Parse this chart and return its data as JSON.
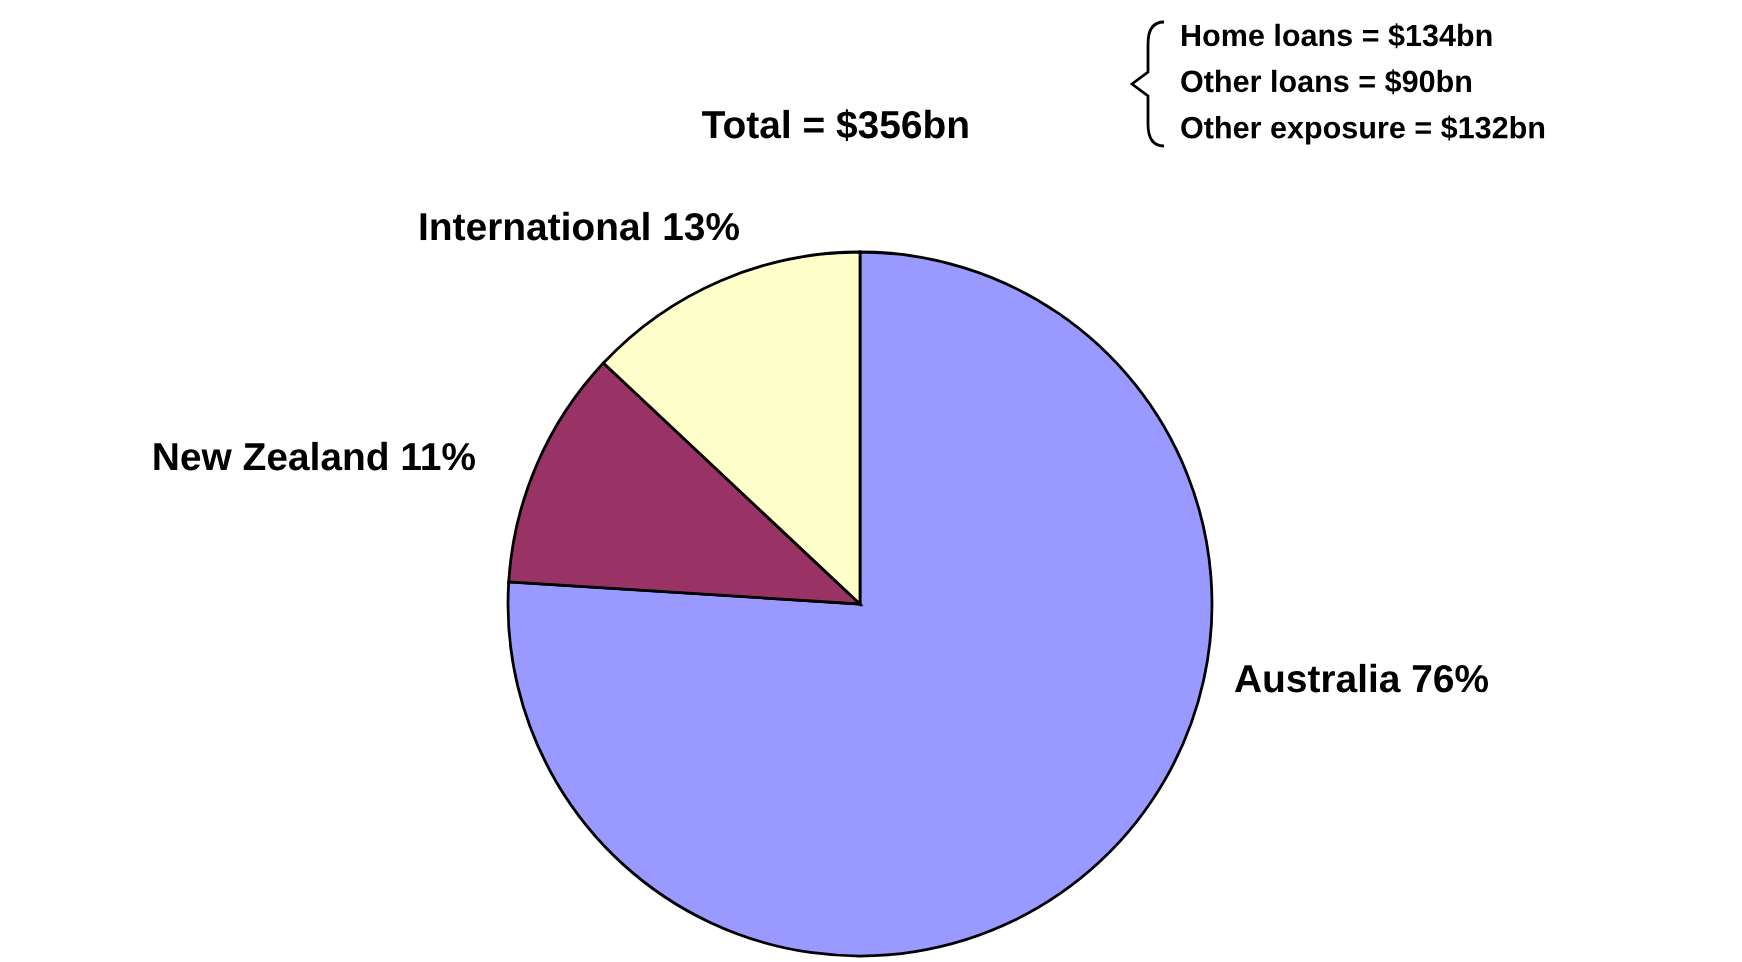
{
  "chart_data": {
    "type": "pie",
    "categories": [
      "Australia",
      "New Zealand",
      "International"
    ],
    "values": [
      76,
      11,
      13
    ],
    "value_labels": [
      "76%",
      "11%",
      "13%"
    ],
    "colors": [
      "#9999ff",
      "#993366",
      "#ffffcc"
    ],
    "annotations": [
      "Total = $356bn",
      "Home loans = $134bn",
      "Other loans = $90bn",
      "Other exposure = $132bn"
    ]
  }
}
